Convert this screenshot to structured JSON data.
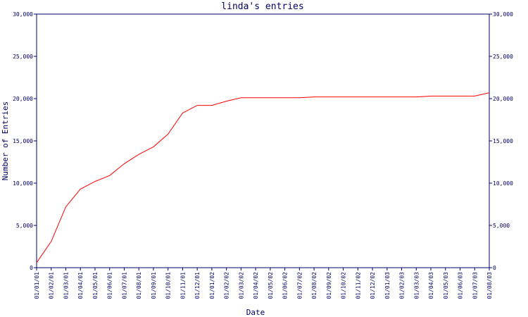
{
  "chart_data": {
    "type": "line",
    "title": "linda's entries",
    "x_label": "Date",
    "y_label": "Number of Entries",
    "categories": [
      "01/01/01",
      "01/02/01",
      "01/03/01",
      "01/04/01",
      "01/05/01",
      "01/06/01",
      "01/07/01",
      "01/08/01",
      "01/09/01",
      "01/10/01",
      "01/11/01",
      "01/12/01",
      "01/01/02",
      "01/02/02",
      "01/03/02",
      "01/04/02",
      "01/05/02",
      "01/06/02",
      "01/07/02",
      "01/08/02",
      "01/09/02",
      "01/10/02",
      "01/11/02",
      "01/12/02",
      "01/01/03",
      "01/02/03",
      "01/03/03",
      "01/04/03",
      "01/05/03",
      "01/06/03",
      "01/07/03",
      "01/08/03"
    ],
    "series": [
      {
        "name": "linda",
        "color": "#ff0000",
        "values": [
          600,
          3100,
          7200,
          9300,
          10200,
          10900,
          12300,
          13400,
          14300,
          15800,
          18300,
          19200,
          19200,
          19700,
          20100,
          20100,
          20100,
          20100,
          20100,
          20200,
          20200,
          20200,
          20200,
          20200,
          20200,
          20200,
          20200,
          20300,
          20300,
          20300,
          20300,
          20700
        ]
      }
    ],
    "ylim": [
      0,
      30000
    ],
    "yticks": [
      0,
      {
        "value": 5000,
        "label": "5,000"
      },
      {
        "value": 10000,
        "label": "10,000"
      },
      {
        "value": 15000,
        "label": "15,000"
      },
      {
        "value": 20000,
        "label": "20,000"
      },
      {
        "value": 25000,
        "label": "25,000"
      },
      {
        "value": 30000,
        "label": "30,000"
      }
    ],
    "axis_color": "#000066"
  }
}
